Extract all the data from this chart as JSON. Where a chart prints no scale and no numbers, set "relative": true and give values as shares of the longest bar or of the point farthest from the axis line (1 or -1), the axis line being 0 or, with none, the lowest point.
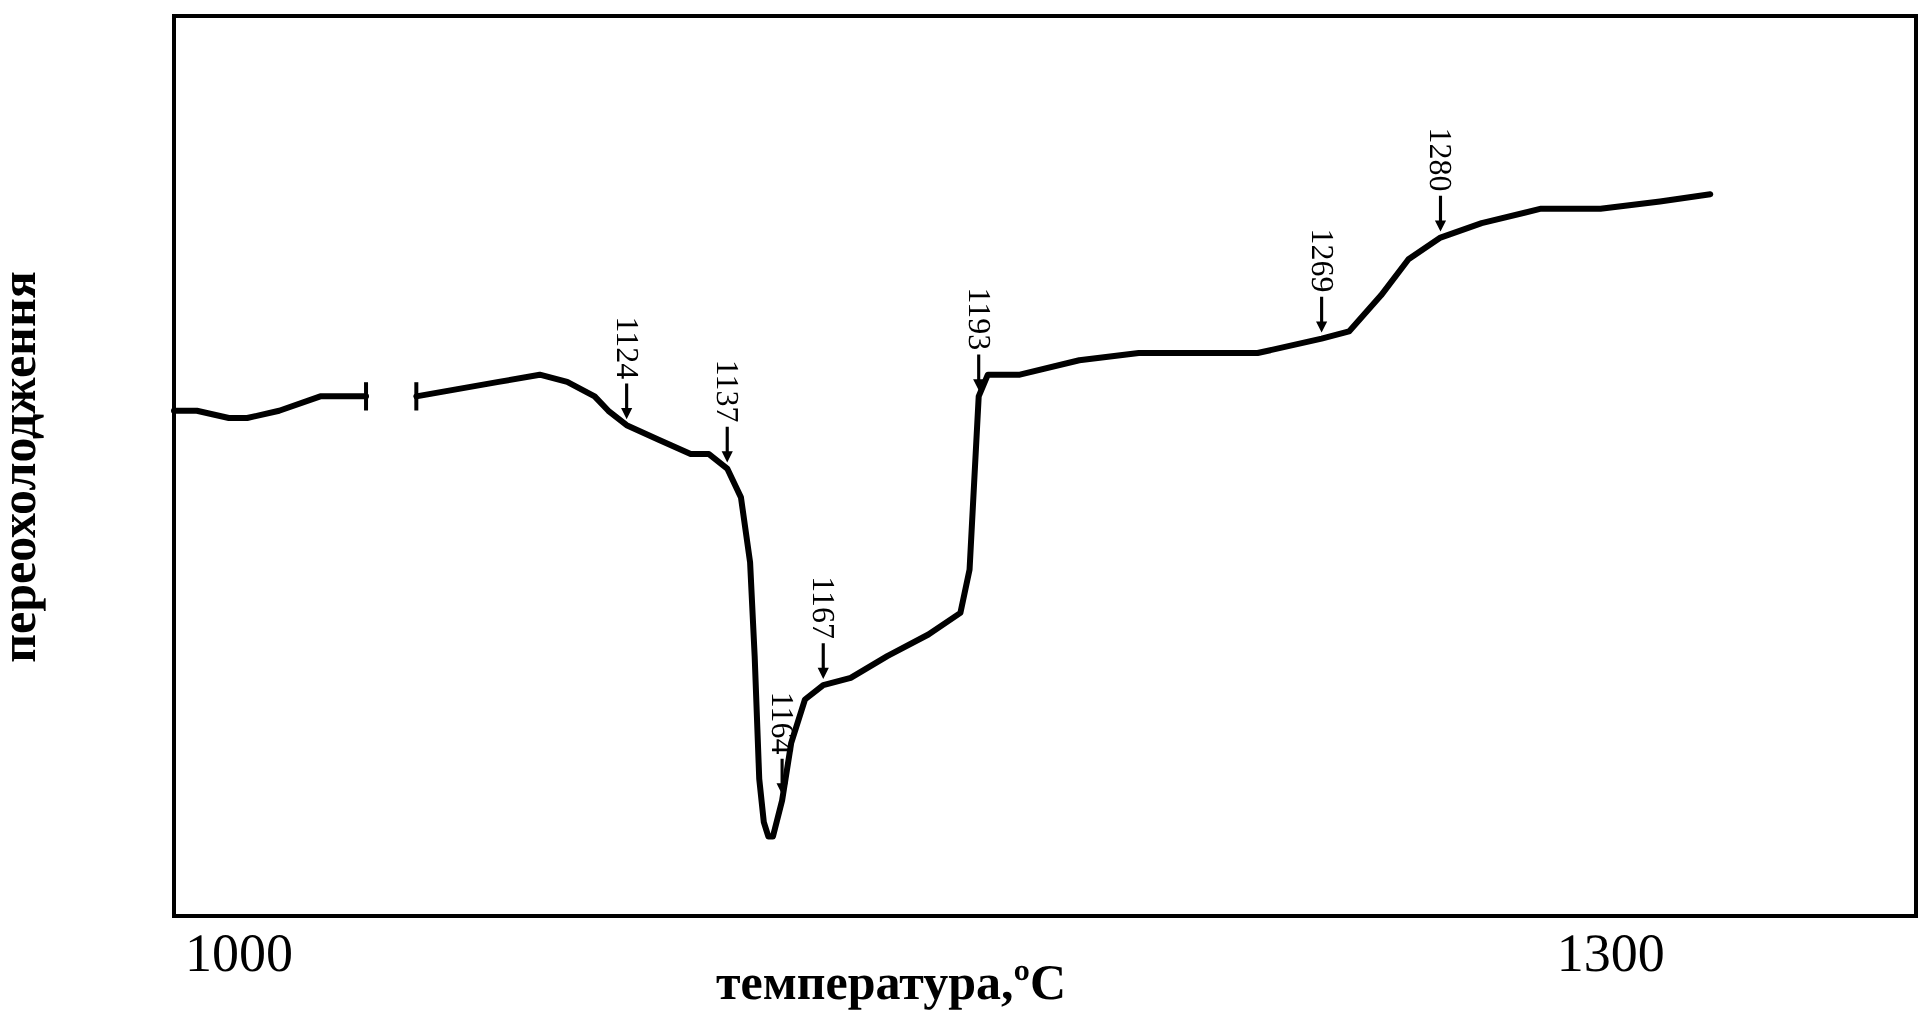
{
  "chart_data": {
    "type": "line",
    "xlabel": "температура,ºC",
    "ylabel": "переохолодження",
    "relative": true,
    "xlim": [
      986,
      1367
    ],
    "xticks": [
      1000,
      1300
    ],
    "x": [
      986,
      991,
      998,
      1002,
      1009,
      1018,
      1028,
      1033,
      1039,
      1048,
      1057,
      1066,
      1072,
      1078,
      1081,
      1085,
      1092,
      1099,
      1103,
      1107,
      1110,
      1112,
      1113,
      1114,
      1115,
      1116,
      1117,
      1119,
      1121,
      1124,
      1128,
      1134,
      1142,
      1151,
      1158,
      1160,
      1161,
      1162,
      1164,
      1171,
      1184,
      1197,
      1210,
      1223,
      1237,
      1243,
      1250,
      1256,
      1263,
      1272,
      1285,
      1298,
      1311,
      1322
    ],
    "series": [
      {
        "color": "#000000",
        "values": [
          0.7,
          0.7,
          0.69,
          0.69,
          0.7,
          0.72,
          0.72,
          null,
          0.72,
          0.73,
          0.74,
          0.75,
          0.74,
          0.72,
          0.7,
          0.68,
          0.66,
          0.64,
          0.64,
          0.62,
          0.58,
          0.49,
          0.36,
          0.19,
          0.13,
          0.11,
          0.11,
          0.16,
          0.24,
          0.3,
          0.32,
          0.33,
          0.36,
          0.39,
          0.42,
          0.48,
          0.6,
          0.72,
          0.75,
          0.75,
          0.77,
          0.78,
          0.78,
          0.78,
          0.8,
          0.81,
          0.86,
          0.91,
          0.94,
          0.96,
          0.98,
          0.98,
          0.99,
          1.0
        ]
      }
    ],
    "annotations": [
      {
        "text": "1124",
        "x": 1085,
        "y": 0.68
      },
      {
        "text": "1137",
        "x": 1107,
        "y": 0.62
      },
      {
        "text": "1164",
        "x": 1119,
        "y": 0.16
      },
      {
        "text": "1167",
        "x": 1128,
        "y": 0.32
      },
      {
        "text": "1193",
        "x": 1162,
        "y": 0.72
      },
      {
        "text": "1269",
        "x": 1237,
        "y": 0.8
      },
      {
        "text": "1280",
        "x": 1263,
        "y": 0.94
      }
    ]
  }
}
